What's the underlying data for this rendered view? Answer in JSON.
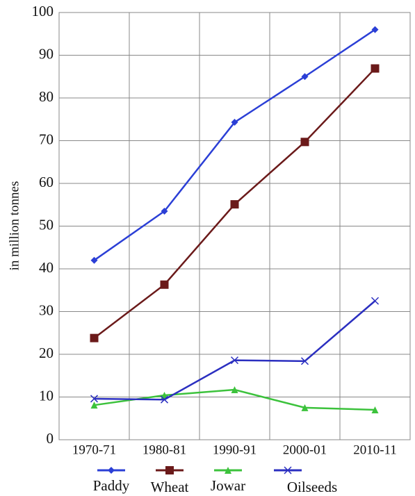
{
  "chart_data": {
    "type": "line",
    "y_label": "in million tonnes",
    "categories": [
      "1970-71",
      "1980-81",
      "1990-91",
      "2000-01",
      "2010-11"
    ],
    "series": [
      {
        "name": "Paddy",
        "color": "#2b3fd6",
        "marker": "diamond",
        "values": [
          42,
          53.5,
          74.3,
          85,
          96
        ]
      },
      {
        "name": "Wheat",
        "color": "#6b1a1a",
        "marker": "square",
        "values": [
          23.8,
          36.3,
          55.1,
          69.7,
          86.9
        ]
      },
      {
        "name": "Jowar",
        "color": "#3cc23c",
        "marker": "triangle",
        "values": [
          8.1,
          10.4,
          11.7,
          7.5,
          7.0
        ]
      },
      {
        "name": "Oilseeds",
        "color": "#2b2fc0",
        "marker": "x",
        "values": [
          9.6,
          9.4,
          18.6,
          18.4,
          32.5
        ]
      }
    ],
    "ylim": [
      0,
      100
    ],
    "yticks": [
      0,
      10,
      20,
      30,
      40,
      50,
      60,
      70,
      80,
      90,
      100
    ],
    "grid": true
  }
}
